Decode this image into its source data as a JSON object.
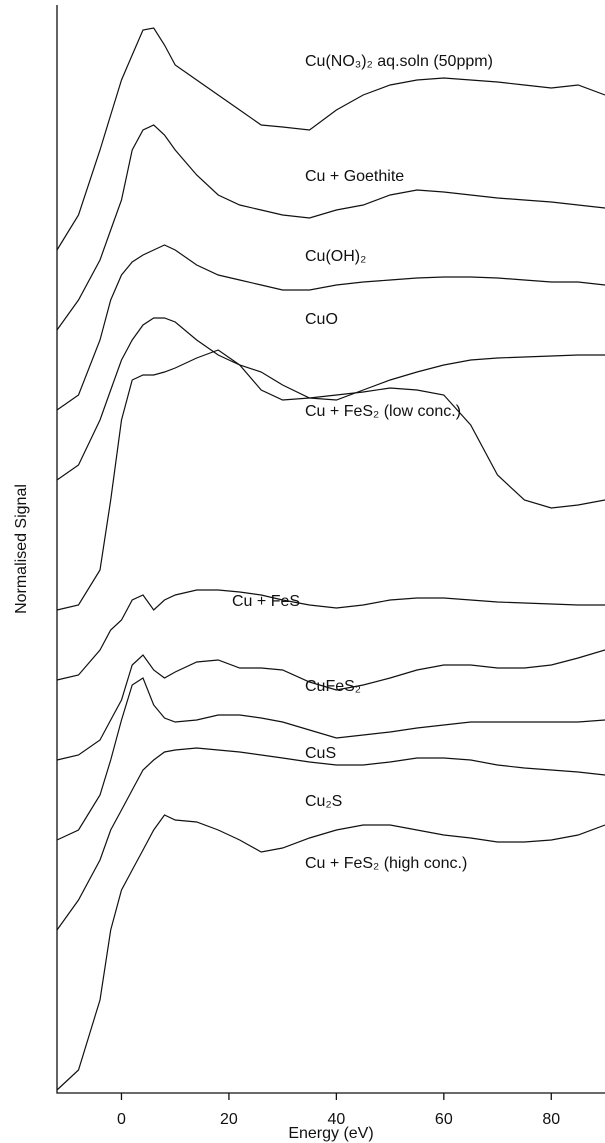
{
  "chart_data": {
    "type": "line",
    "xlabel": "Energy (eV)",
    "ylabel": "Normalised Signal",
    "x": [
      -12,
      -8,
      -4,
      -2,
      0,
      2,
      4,
      6,
      8,
      10,
      14,
      18,
      22,
      26,
      30,
      35,
      40,
      45,
      50,
      55,
      60,
      65,
      70,
      75,
      80,
      85,
      90
    ],
    "xlim": [
      -12,
      90
    ],
    "xticks": [
      0,
      20,
      40,
      60,
      80
    ],
    "ylim": [
      0,
      1088
    ],
    "series": [
      {
        "name": "Cu(NO₃)₂ aq.soln (50ppm)",
        "color": "#111111",
        "values": [
          843,
          878,
          943,
          978,
          1013,
          1038,
          1063,
          1065,
          1048,
          1028,
          1013,
          998,
          983,
          968,
          966,
          963,
          983,
          998,
          1008,
          1013,
          1015,
          1013,
          1011,
          1008,
          1005,
          1008,
          998
        ]
      },
      {
        "name": "Cu + Goethite",
        "color": "#111111",
        "values": [
          763,
          793,
          833,
          863,
          893,
          943,
          963,
          968,
          958,
          943,
          918,
          898,
          888,
          883,
          878,
          875,
          883,
          888,
          898,
          903,
          901,
          898,
          895,
          893,
          891,
          888,
          885
        ]
      },
      {
        "name": "Cu(OH)₂",
        "color": "#111111",
        "values": [
          683,
          698,
          753,
          793,
          818,
          831,
          838,
          843,
          848,
          843,
          828,
          818,
          813,
          808,
          803,
          803,
          808,
          811,
          813,
          815,
          816,
          816,
          815,
          813,
          811,
          811,
          808
        ]
      },
      {
        "name": "CuO",
        "color": "#111111",
        "values": [
          613,
          628,
          673,
          703,
          733,
          753,
          768,
          775,
          775,
          771,
          753,
          738,
          728,
          721,
          708,
          695,
          693,
          703,
          713,
          721,
          728,
          733,
          735,
          736,
          737,
          738,
          738
        ]
      },
      {
        "name": "Cu + FeS₂ (low conc.)",
        "color": "#111111",
        "values": [
          483,
          488,
          523,
          593,
          673,
          713,
          718,
          718,
          721,
          725,
          735,
          743,
          728,
          703,
          693,
          695,
          698,
          701,
          705,
          703,
          698,
          668,
          618,
          593,
          585,
          588,
          593
        ]
      },
      {
        "name": "Cu + FeS",
        "color": "#111111",
        "values": [
          413,
          418,
          443,
          463,
          473,
          493,
          498,
          483,
          493,
          498,
          503,
          503,
          501,
          498,
          493,
          488,
          485,
          488,
          493,
          495,
          495,
          493,
          491,
          490,
          489,
          488,
          488
        ]
      },
      {
        "name": "CuFeS₂",
        "color": "#111111",
        "values": [
          333,
          338,
          353,
          373,
          393,
          428,
          438,
          423,
          415,
          421,
          431,
          433,
          425,
          425,
          423,
          411,
          403,
          408,
          415,
          423,
          428,
          428,
          425,
          425,
          428,
          435,
          443
        ]
      },
      {
        "name": "CuS",
        "color": "#111111",
        "values": [
          253,
          263,
          298,
          333,
          373,
          408,
          415,
          388,
          375,
          371,
          373,
          378,
          378,
          375,
          371,
          363,
          355,
          358,
          361,
          365,
          368,
          371,
          371,
          371,
          371,
          371,
          373
        ]
      },
      {
        "name": "Cu₂S",
        "color": "#111111",
        "values": [
          163,
          193,
          233,
          263,
          283,
          303,
          323,
          333,
          341,
          343,
          345,
          343,
          341,
          338,
          335,
          331,
          328,
          328,
          331,
          335,
          335,
          333,
          328,
          325,
          323,
          321,
          318
        ]
      },
      {
        "name": "Cu + FeS₂ (high conc.)",
        "color": "#111111",
        "values": [
          3,
          23,
          93,
          163,
          203,
          223,
          243,
          263,
          278,
          273,
          271,
          263,
          253,
          241,
          245,
          255,
          263,
          268,
          268,
          263,
          258,
          255,
          251,
          251,
          253,
          258,
          268
        ]
      }
    ]
  }
}
